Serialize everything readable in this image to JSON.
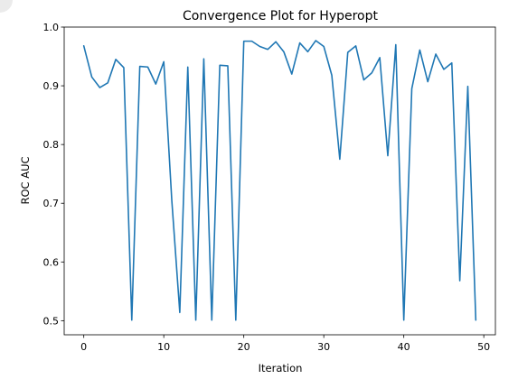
{
  "chart_data": {
    "type": "line",
    "title": "Convergence Plot for Hyperopt",
    "xlabel": "Iteration",
    "ylabel": "ROC AUC",
    "xlim": [
      -2.45,
      51.45
    ],
    "ylim": [
      0.476,
      1.0
    ],
    "x_ticks": [
      0,
      10,
      20,
      30,
      40,
      50
    ],
    "y_ticks": [
      0.5,
      0.6,
      0.7,
      0.8,
      0.9,
      1.0
    ],
    "x_tick_labels": [
      "0",
      "10",
      "20",
      "30",
      "40",
      "50"
    ],
    "y_tick_labels": [
      "0.5",
      "0.6",
      "0.7",
      "0.8",
      "0.9",
      "1.0"
    ],
    "grid": false,
    "legend": "none",
    "series": [
      {
        "color": "#1f77b4",
        "x": [
          0,
          1,
          2,
          3,
          4,
          5,
          6,
          7,
          8,
          9,
          10,
          11,
          12,
          13,
          14,
          15,
          16,
          17,
          18,
          19,
          20,
          21,
          22,
          23,
          24,
          25,
          26,
          27,
          28,
          29,
          30,
          31,
          32,
          33,
          34,
          35,
          36,
          37,
          38,
          39,
          40,
          41,
          42,
          43,
          44,
          45,
          46,
          47,
          48,
          49
        ],
        "values": [
          0.968,
          0.915,
          0.897,
          0.905,
          0.945,
          0.931,
          0.501,
          0.933,
          0.932,
          0.903,
          0.941,
          0.705,
          0.514,
          0.932,
          0.501,
          0.946,
          0.501,
          0.935,
          0.934,
          0.501,
          0.976,
          0.976,
          0.967,
          0.962,
          0.975,
          0.958,
          0.92,
          0.973,
          0.958,
          0.977,
          0.967,
          0.918,
          0.775,
          0.957,
          0.968,
          0.91,
          0.922,
          0.948,
          0.781,
          0.97,
          0.501,
          0.895,
          0.961,
          0.907,
          0.954,
          0.928,
          0.939,
          0.568,
          0.899,
          0.501
        ]
      }
    ]
  }
}
